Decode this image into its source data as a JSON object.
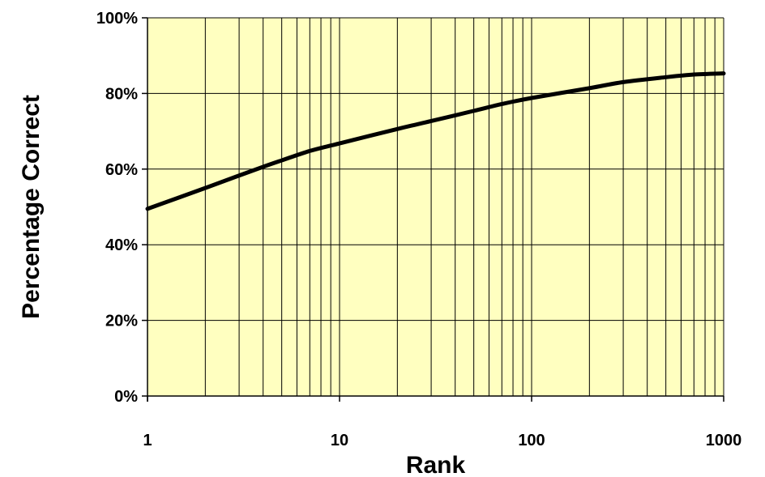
{
  "chart_data": {
    "type": "line",
    "title": "",
    "xlabel": "Rank",
    "ylabel": "Percentage Correct",
    "x_scale": "log",
    "xlim": [
      1,
      1000
    ],
    "ylim": [
      0,
      100
    ],
    "x_ticks": [
      "1",
      "10",
      "100",
      "1000"
    ],
    "y_ticks": [
      "0%",
      "20%",
      "40%",
      "60%",
      "80%",
      "100%"
    ],
    "grid": true,
    "plot_background": "#FFFFC0",
    "line_color": "#000000",
    "series": [
      {
        "x": [
          1,
          2,
          3,
          4,
          5,
          7,
          10,
          20,
          30,
          50,
          70,
          100,
          200,
          300,
          500,
          700,
          1000
        ],
        "y": [
          49.5,
          55,
          58.3,
          60.6,
          62.3,
          64.8,
          66.8,
          70.6,
          72.7,
          75.4,
          77.2,
          78.8,
          81.4,
          83.0,
          84.3,
          85.0,
          85.3
        ]
      }
    ]
  }
}
